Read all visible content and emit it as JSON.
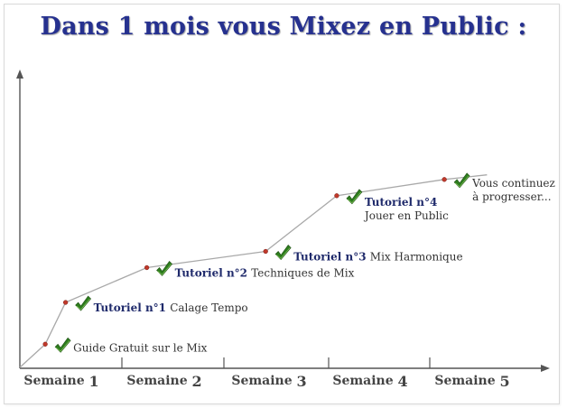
{
  "page": {
    "title": "Dans 1 mois vous Mixez en Public :"
  },
  "colors": {
    "title": "#26318f",
    "axis": "#555555",
    "line": "#a9a9a9",
    "marker": "#c0392b",
    "check": "#2e7d1e",
    "milestone_title": "#1f2a6b"
  },
  "chart_data": {
    "type": "line",
    "title": "Dans 1 mois vous Mixez en Public :",
    "xlabel": "",
    "ylabel": "",
    "categories": [
      "Semaine 1",
      "Semaine 2",
      "Semaine 3",
      "Semaine 4",
      "Semaine 5"
    ],
    "xlim": [
      0,
      5.05
    ],
    "ylim": [
      0,
      1
    ],
    "grid": false,
    "legend": "none",
    "series": [
      {
        "points": [
          {
            "x": 0.0,
            "y": 0.0
          },
          {
            "x": 0.25,
            "y": 0.1
          },
          {
            "x": 0.45,
            "y": 0.28
          },
          {
            "x": 1.25,
            "y": 0.43
          },
          {
            "x": 2.42,
            "y": 0.5
          },
          {
            "x": 3.12,
            "y": 0.74
          },
          {
            "x": 4.18,
            "y": 0.81
          },
          {
            "x": 4.6,
            "y": 0.83
          }
        ]
      }
    ],
    "markers": [
      {
        "x": 0.25,
        "y": 0.1,
        "title": "",
        "desc": "Guide Gratuit sur le Mix"
      },
      {
        "x": 0.45,
        "y": 0.28,
        "title": "Tutoriel n°1",
        "desc": "Calage Tempo"
      },
      {
        "x": 1.25,
        "y": 0.43,
        "title": "Tutoriel n°2",
        "desc": "Techniques de Mix"
      },
      {
        "x": 2.42,
        "y": 0.5,
        "title": "Tutoriel n°3",
        "desc": "Mix Harmonique"
      },
      {
        "x": 3.12,
        "y": 0.74,
        "title": "Tutoriel n°4",
        "desc": "Jouer en Public"
      },
      {
        "x": 4.18,
        "y": 0.81,
        "title": "",
        "desc": "Vous continuez\nà progresser..."
      }
    ]
  }
}
